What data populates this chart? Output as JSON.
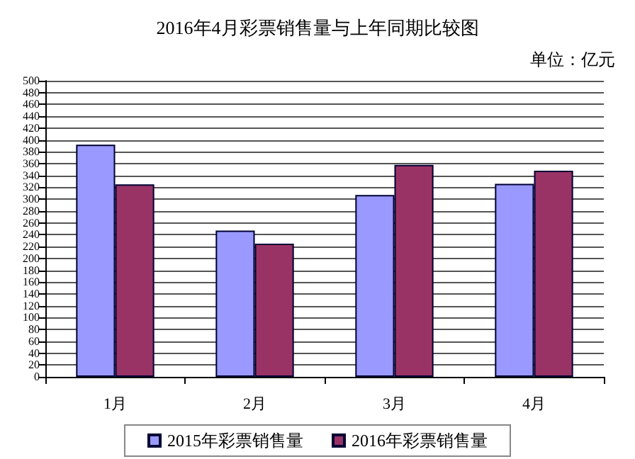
{
  "chart_data": {
    "type": "bar",
    "title": "2016年4月彩票销售量与上年同期比较图",
    "ylabel": "单位：亿元",
    "categories": [
      "1月",
      "2月",
      "3月",
      "4月"
    ],
    "series": [
      {
        "name": "2015年彩票销售量",
        "color": "#9999ff",
        "values": [
          392,
          247,
          307,
          326
        ]
      },
      {
        "name": "2016年彩票销售量",
        "color": "#993366",
        "values": [
          325,
          225,
          358,
          348
        ]
      }
    ],
    "ylim": [
      0,
      500
    ],
    "yticks": [
      0,
      20,
      40,
      60,
      80,
      100,
      120,
      140,
      160,
      180,
      200,
      220,
      240,
      260,
      280,
      300,
      320,
      340,
      360,
      380,
      400,
      420,
      440,
      460,
      480,
      500
    ],
    "grid": "y",
    "legend": "bottom"
  }
}
